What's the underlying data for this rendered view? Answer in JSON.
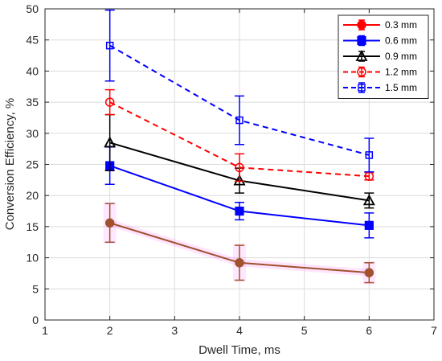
{
  "chart_data": {
    "type": "line",
    "xlabel": "Dwell Time, ms",
    "ylabel": "Conversion Efficiency, %",
    "xlim": [
      1,
      7
    ],
    "ylim": [
      0,
      50
    ],
    "xticks": [
      1,
      2,
      3,
      4,
      5,
      6,
      7
    ],
    "yticks": [
      0,
      5,
      10,
      15,
      20,
      25,
      30,
      35,
      40,
      45,
      50
    ],
    "grid": true,
    "legend_position": "top-right",
    "series": [
      {
        "name": "0.3 mm",
        "color": "#ff0000",
        "line": "solid",
        "marker": "filled-circle",
        "x": [
          2,
          4,
          6
        ],
        "y": [
          15.6,
          9.2,
          7.6
        ],
        "err": [
          3.1,
          2.8,
          1.6
        ]
      },
      {
        "name": "0.6 mm",
        "color": "#0000ff",
        "line": "solid",
        "marker": "filled-square",
        "x": [
          2,
          4,
          6
        ],
        "y": [
          24.8,
          17.5,
          15.2
        ],
        "err": [
          3.0,
          1.4,
          2.0
        ]
      },
      {
        "name": "0.9 mm",
        "color": "#000000",
        "line": "solid",
        "marker": "open-triangle",
        "x": [
          2,
          4,
          6
        ],
        "y": [
          28.5,
          22.4,
          19.2
        ],
        "err": [
          4.5,
          2.0,
          1.2
        ]
      },
      {
        "name": "1.2 mm",
        "color": "#ff0000",
        "line": "dashed",
        "marker": "open-circle",
        "x": [
          2,
          4,
          6
        ],
        "y": [
          35.0,
          24.5,
          23.1
        ],
        "err": [
          2.0,
          2.2,
          0.6
        ]
      },
      {
        "name": "1.5 mm",
        "color": "#0000ff",
        "line": "dashed",
        "marker": "open-square",
        "x": [
          2,
          4,
          6
        ],
        "y": [
          44.1,
          32.1,
          26.5
        ],
        "err": [
          5.7,
          3.9,
          2.7
        ]
      }
    ],
    "overlays": [
      {
        "of_series": "0.3 mm",
        "color": "#a0522d",
        "halo_color": "#ff66ff"
      }
    ]
  }
}
